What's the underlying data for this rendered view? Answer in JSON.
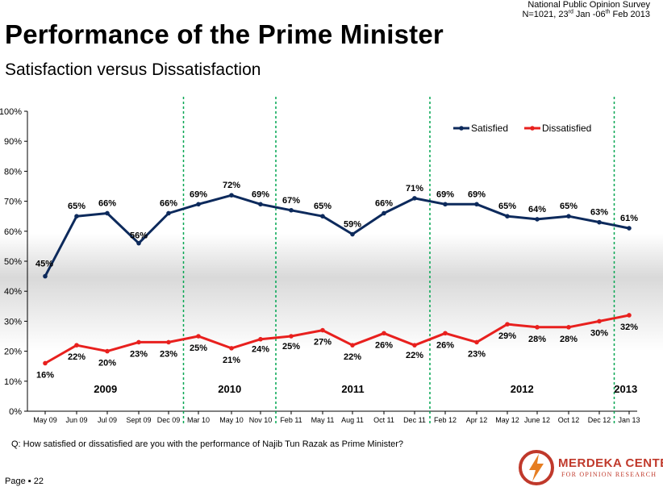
{
  "header": {
    "survey_line1": "National Public Opinion Survey",
    "survey_line2_a": "N=1021, 23",
    "survey_line2_sup1": "rd",
    "survey_line2_b": " Jan -06",
    "survey_line2_sup2": "th",
    "survey_line2_c": " Feb 2013",
    "title": "Performance of the Prime Minister",
    "subtitle": "Satisfaction versus Dissatisfaction"
  },
  "chart_data": {
    "type": "line",
    "categories": [
      "May 09",
      "Jun 09",
      "Jul 09",
      "Sept 09",
      "Dec 09",
      "Mar 10",
      "May 10",
      "Nov 10",
      "Feb 11",
      "May 11",
      "Aug 11",
      "Oct 11",
      "Dec 11",
      "Feb 12",
      "Apr 12",
      "May 12",
      "June 12",
      "Oct 12",
      "Dec 12",
      "Jan 13"
    ],
    "series": [
      {
        "name": "Satisfied",
        "color": "#0d2a5c",
        "values": [
          45,
          65,
          66,
          56,
          66,
          69,
          72,
          69,
          67,
          65,
          59,
          66,
          71,
          69,
          69,
          65,
          64,
          65,
          63,
          61
        ]
      },
      {
        "name": "Dissatisfied",
        "color": "#e8201e",
        "values": [
          16,
          22,
          20,
          23,
          23,
          25,
          21,
          24,
          25,
          27,
          22,
          26,
          22,
          26,
          23,
          29,
          28,
          28,
          30,
          32
        ]
      }
    ],
    "ylim": [
      0,
      100
    ],
    "yticks": [
      "0%",
      "10%",
      "20%",
      "30%",
      "40%",
      "50%",
      "60%",
      "70%",
      "80%",
      "90%",
      "100%"
    ],
    "year_labels": [
      "2009",
      "2010",
      "2011",
      "2012",
      "2013"
    ],
    "year_dividers_after_index": [
      4,
      7,
      12,
      18
    ],
    "divider_color": "#00a651",
    "legend_position": "top-right",
    "grid": false
  },
  "footer": {
    "question": "Q: How satisfied or dissatisfied are you with the performance of Najib Tun Razak as Prime Minister?",
    "page": "Page ▪ 22",
    "logo_brand": "MERDEKA CENTER",
    "logo_tag": "FOR OPINION RESEARCH"
  }
}
